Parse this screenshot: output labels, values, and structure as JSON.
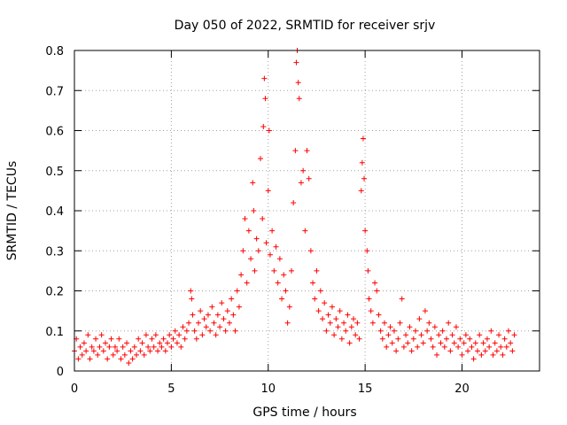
{
  "chart_data": {
    "type": "scatter",
    "title": "Day 050 of 2022, SRMTID for receiver srjv",
    "xlabel": "GPS time / hours",
    "ylabel": "SRMTID / TECUs",
    "xlim": [
      0,
      24
    ],
    "ylim": [
      0,
      0.8
    ],
    "x_ticks": [
      0,
      5,
      10,
      15,
      20
    ],
    "x_tick_labels": [
      "0",
      "5",
      "10",
      "15",
      "20"
    ],
    "y_ticks": [
      0,
      0.1,
      0.2,
      0.3,
      0.4,
      0.5,
      0.6,
      0.7,
      0.8
    ],
    "y_tick_labels": [
      "0",
      "0.1",
      "0.2",
      "0.3",
      "0.4",
      "0.5",
      "0.6",
      "0.7",
      "0.8"
    ],
    "grid": true,
    "marker": "+",
    "color": "#ff0000",
    "series": [
      {
        "name": "srjv",
        "points": [
          [
            0.0,
            0.05
          ],
          [
            0.1,
            0.08
          ],
          [
            0.2,
            0.03
          ],
          [
            0.3,
            0.06
          ],
          [
            0.4,
            0.04
          ],
          [
            0.5,
            0.07
          ],
          [
            0.6,
            0.05
          ],
          [
            0.7,
            0.09
          ],
          [
            0.8,
            0.03
          ],
          [
            0.9,
            0.06
          ],
          [
            1.0,
            0.05
          ],
          [
            1.1,
            0.08
          ],
          [
            1.2,
            0.04
          ],
          [
            1.3,
            0.06
          ],
          [
            1.4,
            0.09
          ],
          [
            1.5,
            0.05
          ],
          [
            1.6,
            0.07
          ],
          [
            1.7,
            0.03
          ],
          [
            1.8,
            0.06
          ],
          [
            1.9,
            0.08
          ],
          [
            2.0,
            0.04
          ],
          [
            2.1,
            0.06
          ],
          [
            2.2,
            0.05
          ],
          [
            2.3,
            0.08
          ],
          [
            2.4,
            0.03
          ],
          [
            2.5,
            0.06
          ],
          [
            2.6,
            0.04
          ],
          [
            2.7,
            0.07
          ],
          [
            2.8,
            0.02
          ],
          [
            2.9,
            0.05
          ],
          [
            3.0,
            0.03
          ],
          [
            3.1,
            0.06
          ],
          [
            3.2,
            0.04
          ],
          [
            3.3,
            0.08
          ],
          [
            3.4,
            0.05
          ],
          [
            3.5,
            0.07
          ],
          [
            3.6,
            0.04
          ],
          [
            3.7,
            0.09
          ],
          [
            3.8,
            0.06
          ],
          [
            3.9,
            0.05
          ],
          [
            4.0,
            0.08
          ],
          [
            4.1,
            0.06
          ],
          [
            4.2,
            0.09
          ],
          [
            4.3,
            0.05
          ],
          [
            4.4,
            0.07
          ],
          [
            4.5,
            0.06
          ],
          [
            4.6,
            0.08
          ],
          [
            4.7,
            0.05
          ],
          [
            4.8,
            0.07
          ],
          [
            4.9,
            0.09
          ],
          [
            5.0,
            0.06
          ],
          [
            5.1,
            0.08
          ],
          [
            5.2,
            0.1
          ],
          [
            5.3,
            0.07
          ],
          [
            5.4,
            0.09
          ],
          [
            5.5,
            0.06
          ],
          [
            5.6,
            0.11
          ],
          [
            5.7,
            0.08
          ],
          [
            5.8,
            0.1
          ],
          [
            5.9,
            0.12
          ],
          [
            6.0,
            0.2
          ],
          [
            6.05,
            0.18
          ],
          [
            6.1,
            0.14
          ],
          [
            6.2,
            0.1
          ],
          [
            6.3,
            0.08
          ],
          [
            6.4,
            0.12
          ],
          [
            6.5,
            0.15
          ],
          [
            6.6,
            0.09
          ],
          [
            6.7,
            0.13
          ],
          [
            6.8,
            0.11
          ],
          [
            6.9,
            0.14
          ],
          [
            7.0,
            0.1
          ],
          [
            7.1,
            0.16
          ],
          [
            7.2,
            0.12
          ],
          [
            7.3,
            0.09
          ],
          [
            7.4,
            0.14
          ],
          [
            7.5,
            0.11
          ],
          [
            7.6,
            0.17
          ],
          [
            7.7,
            0.13
          ],
          [
            7.8,
            0.1
          ],
          [
            7.9,
            0.15
          ],
          [
            8.0,
            0.12
          ],
          [
            8.1,
            0.18
          ],
          [
            8.2,
            0.14
          ],
          [
            8.3,
            0.1
          ],
          [
            8.4,
            0.2
          ],
          [
            8.5,
            0.16
          ],
          [
            8.6,
            0.24
          ],
          [
            8.7,
            0.3
          ],
          [
            8.8,
            0.38
          ],
          [
            8.9,
            0.22
          ],
          [
            9.0,
            0.35
          ],
          [
            9.1,
            0.28
          ],
          [
            9.2,
            0.47
          ],
          [
            9.25,
            0.4
          ],
          [
            9.3,
            0.25
          ],
          [
            9.4,
            0.33
          ],
          [
            9.5,
            0.3
          ],
          [
            9.6,
            0.53
          ],
          [
            9.7,
            0.38
          ],
          [
            9.75,
            0.61
          ],
          [
            9.8,
            0.73
          ],
          [
            9.85,
            0.68
          ],
          [
            9.9,
            0.32
          ],
          [
            10.0,
            0.45
          ],
          [
            10.05,
            0.6
          ],
          [
            10.1,
            0.29
          ],
          [
            10.2,
            0.35
          ],
          [
            10.3,
            0.25
          ],
          [
            10.4,
            0.31
          ],
          [
            10.5,
            0.22
          ],
          [
            10.6,
            0.28
          ],
          [
            10.7,
            0.18
          ],
          [
            10.8,
            0.24
          ],
          [
            10.9,
            0.2
          ],
          [
            11.0,
            0.12
          ],
          [
            11.1,
            0.16
          ],
          [
            11.2,
            0.25
          ],
          [
            11.3,
            0.42
          ],
          [
            11.4,
            0.55
          ],
          [
            11.45,
            0.77
          ],
          [
            11.5,
            0.8
          ],
          [
            11.55,
            0.72
          ],
          [
            11.6,
            0.68
          ],
          [
            11.7,
            0.47
          ],
          [
            11.8,
            0.5
          ],
          [
            11.9,
            0.35
          ],
          [
            12.0,
            0.55
          ],
          [
            12.1,
            0.48
          ],
          [
            12.2,
            0.3
          ],
          [
            12.3,
            0.22
          ],
          [
            12.4,
            0.18
          ],
          [
            12.5,
            0.25
          ],
          [
            12.6,
            0.15
          ],
          [
            12.7,
            0.2
          ],
          [
            12.8,
            0.13
          ],
          [
            12.9,
            0.17
          ],
          [
            13.0,
            0.1
          ],
          [
            13.1,
            0.14
          ],
          [
            13.2,
            0.12
          ],
          [
            13.3,
            0.16
          ],
          [
            13.4,
            0.09
          ],
          [
            13.5,
            0.13
          ],
          [
            13.6,
            0.11
          ],
          [
            13.7,
            0.15
          ],
          [
            13.8,
            0.08
          ],
          [
            13.9,
            0.12
          ],
          [
            14.0,
            0.1
          ],
          [
            14.1,
            0.14
          ],
          [
            14.2,
            0.07
          ],
          [
            14.3,
            0.11
          ],
          [
            14.4,
            0.13
          ],
          [
            14.5,
            0.09
          ],
          [
            14.6,
            0.12
          ],
          [
            14.7,
            0.08
          ],
          [
            14.8,
            0.45
          ],
          [
            14.85,
            0.52
          ],
          [
            14.9,
            0.58
          ],
          [
            14.95,
            0.48
          ],
          [
            15.0,
            0.35
          ],
          [
            15.1,
            0.3
          ],
          [
            15.15,
            0.25
          ],
          [
            15.2,
            0.18
          ],
          [
            15.3,
            0.15
          ],
          [
            15.4,
            0.12
          ],
          [
            15.5,
            0.22
          ],
          [
            15.6,
            0.2
          ],
          [
            15.7,
            0.14
          ],
          [
            15.8,
            0.1
          ],
          [
            15.9,
            0.08
          ],
          [
            16.0,
            0.12
          ],
          [
            16.1,
            0.06
          ],
          [
            16.2,
            0.09
          ],
          [
            16.3,
            0.11
          ],
          [
            16.4,
            0.07
          ],
          [
            16.5,
            0.1
          ],
          [
            16.6,
            0.05
          ],
          [
            16.7,
            0.08
          ],
          [
            16.8,
            0.12
          ],
          [
            16.9,
            0.18
          ],
          [
            17.0,
            0.06
          ],
          [
            17.1,
            0.09
          ],
          [
            17.2,
            0.07
          ],
          [
            17.3,
            0.11
          ],
          [
            17.4,
            0.05
          ],
          [
            17.5,
            0.08
          ],
          [
            17.6,
            0.1
          ],
          [
            17.7,
            0.06
          ],
          [
            17.8,
            0.13
          ],
          [
            17.9,
            0.09
          ],
          [
            18.0,
            0.07
          ],
          [
            18.1,
            0.15
          ],
          [
            18.2,
            0.1
          ],
          [
            18.3,
            0.12
          ],
          [
            18.4,
            0.08
          ],
          [
            18.5,
            0.06
          ],
          [
            18.6,
            0.11
          ],
          [
            18.7,
            0.04
          ],
          [
            18.8,
            0.09
          ],
          [
            18.9,
            0.07
          ],
          [
            19.0,
            0.1
          ],
          [
            19.1,
            0.06
          ],
          [
            19.2,
            0.08
          ],
          [
            19.3,
            0.12
          ],
          [
            19.4,
            0.05
          ],
          [
            19.5,
            0.09
          ],
          [
            19.6,
            0.07
          ],
          [
            19.7,
            0.11
          ],
          [
            19.8,
            0.06
          ],
          [
            19.9,
            0.08
          ],
          [
            20.0,
            0.04
          ],
          [
            20.1,
            0.07
          ],
          [
            20.2,
            0.09
          ],
          [
            20.3,
            0.05
          ],
          [
            20.4,
            0.08
          ],
          [
            20.5,
            0.06
          ],
          [
            20.6,
            0.03
          ],
          [
            20.7,
            0.07
          ],
          [
            20.8,
            0.05
          ],
          [
            20.9,
            0.09
          ],
          [
            21.0,
            0.04
          ],
          [
            21.1,
            0.07
          ],
          [
            21.2,
            0.05
          ],
          [
            21.3,
            0.08
          ],
          [
            21.4,
            0.06
          ],
          [
            21.5,
            0.1
          ],
          [
            21.6,
            0.04
          ],
          [
            21.7,
            0.07
          ],
          [
            21.8,
            0.05
          ],
          [
            21.9,
            0.09
          ],
          [
            22.0,
            0.06
          ],
          [
            22.1,
            0.04
          ],
          [
            22.2,
            0.08
          ],
          [
            22.3,
            0.06
          ],
          [
            22.4,
            0.1
          ],
          [
            22.5,
            0.07
          ],
          [
            22.6,
            0.05
          ],
          [
            22.7,
            0.09
          ]
        ]
      }
    ]
  }
}
